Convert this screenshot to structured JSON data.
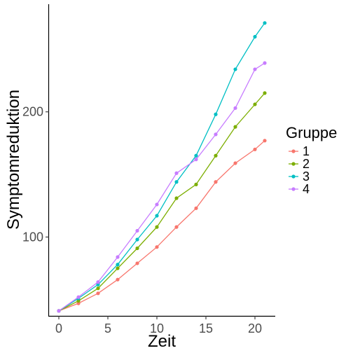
{
  "chart_data": {
    "type": "line",
    "title": "",
    "xlabel": "Zeit",
    "ylabel": "Symptomreduktion",
    "x": [
      0,
      2,
      4,
      6,
      8,
      10,
      12,
      14,
      16,
      18,
      20,
      21
    ],
    "xlim": [
      -1,
      22
    ],
    "ylim": [
      37,
      286
    ],
    "xticks": [
      0,
      5,
      10,
      15,
      20
    ],
    "yticks": [
      100,
      200
    ],
    "grid": false,
    "legend": {
      "title": "Gruppe",
      "position": "right"
    },
    "series": [
      {
        "name": "1",
        "color": "#F8766D",
        "values": [
          41,
          47,
          55,
          66,
          79,
          92,
          108,
          123,
          144,
          159,
          170,
          177
        ]
      },
      {
        "name": "2",
        "color": "#7CAE00",
        "values": [
          41,
          49,
          59,
          75,
          91,
          108,
          131,
          142,
          165,
          188,
          206,
          215
        ]
      },
      {
        "name": "3",
        "color": "#00BFC4",
        "values": [
          41,
          51,
          62,
          78,
          98,
          117,
          144,
          165,
          198,
          234,
          260,
          271
        ]
      },
      {
        "name": "4",
        "color": "#C77CFF",
        "values": [
          41,
          52,
          64,
          84,
          105,
          126,
          151,
          162,
          182,
          203,
          234,
          239
        ]
      }
    ]
  }
}
